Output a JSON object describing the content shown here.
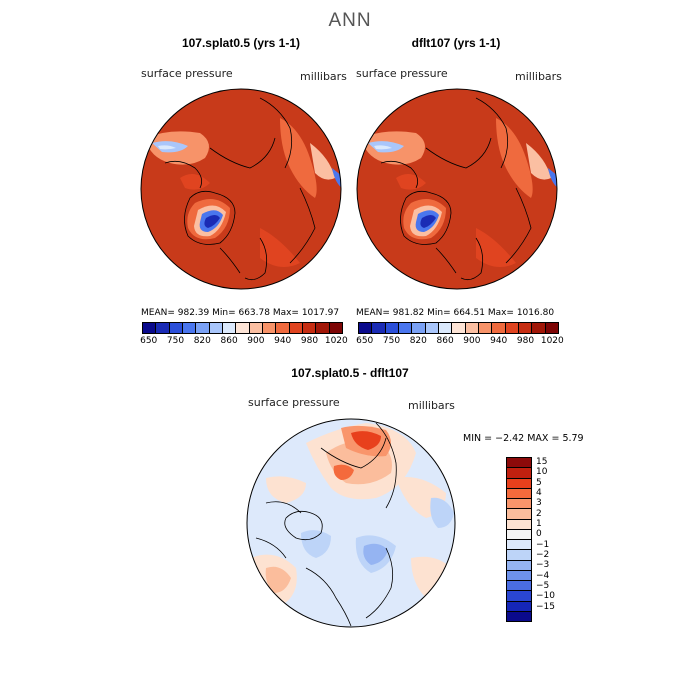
{
  "title": "ANN",
  "panels": [
    {
      "title": "107.splat0.5 (yrs 1-1)",
      "variable": "surface pressure",
      "units": "millibars",
      "stats": "MEAN= 982.39   Min= 663.78   Max= 1017.97"
    },
    {
      "title": "dflt107 (yrs 1-1)",
      "variable": "surface pressure",
      "units": "millibars",
      "stats": "MEAN= 981.82   Min= 664.51   Max= 1016.80"
    }
  ],
  "abs_colorbar": {
    "colors": [
      "#0a0a8c",
      "#1a2bb5",
      "#2b4fd9",
      "#4a76ee",
      "#7aa1f5",
      "#a9c6fb",
      "#dbe9fc",
      "#fde4d6",
      "#fbbfa2",
      "#f79369",
      "#ef6a3e",
      "#e04420",
      "#c62d12",
      "#a11708",
      "#7d0505"
    ],
    "labels": [
      "650",
      "750",
      "820",
      "860",
      "900",
      "940",
      "980",
      "1020"
    ]
  },
  "diff": {
    "title": "107.splat0.5 - dflt107",
    "variable": "surface pressure",
    "units": "millibars",
    "stats": "MIN =  −2.42  MAX =   5.79",
    "colorbar": {
      "colors": [
        "#8c0a0a",
        "#c1200f",
        "#e8401c",
        "#f46a3c",
        "#f9956b",
        "#fbbd9c",
        "#fde2d1",
        "#f4f4f4",
        "#dde9fb",
        "#bdd4f8",
        "#95b4f2",
        "#6e92eb",
        "#4a6de2",
        "#2a46d2",
        "#1526b8",
        "#0a0a8c"
      ],
      "labels": [
        "15",
        "10",
        "5",
        "4",
        "3",
        "2",
        "1",
        "0",
        "−1",
        "−2",
        "−3",
        "−4",
        "−5",
        "−10",
        "−15"
      ]
    }
  },
  "icons": {
    "map_projection": "polar-stereographic-north"
  }
}
